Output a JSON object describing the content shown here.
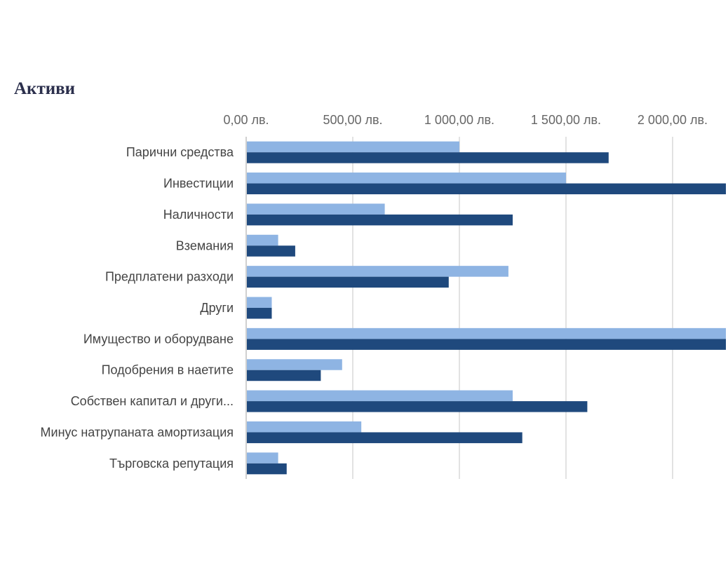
{
  "chart_data": {
    "type": "bar",
    "orientation": "horizontal",
    "title": "Активи",
    "xlabel": "",
    "ylabel": "",
    "xlim": [
      0,
      2250
    ],
    "axis_position": "top",
    "gridlines": true,
    "tick_values": [
      0,
      500,
      1000,
      1500,
      2000
    ],
    "tick_labels": [
      "0,00 лв.",
      "500,00 лв.",
      "1 000,00 лв.",
      "1 500,00 лв.",
      "2 000,00 лв."
    ],
    "categories": [
      "Парични средства",
      "Инвестиции",
      "Наличности",
      "Вземания",
      "Предплатени разходи",
      "Други",
      "Имущество и оборудване",
      "Подобрения в наетите",
      "Собствен капитал и други...",
      "Минус натрупаната амортизация",
      "Търговска репутация"
    ],
    "series": [
      {
        "name": "",
        "color": "#8eb4e3",
        "values": [
          1000,
          1500,
          650,
          150,
          1230,
          120,
          2250,
          450,
          1250,
          540,
          150
        ]
      },
      {
        "name": "",
        "color": "#1f497d",
        "values": [
          1700,
          2250,
          1250,
          230,
          950,
          120,
          2250,
          350,
          1600,
          1295,
          190
        ]
      }
    ],
    "legend": "none"
  }
}
